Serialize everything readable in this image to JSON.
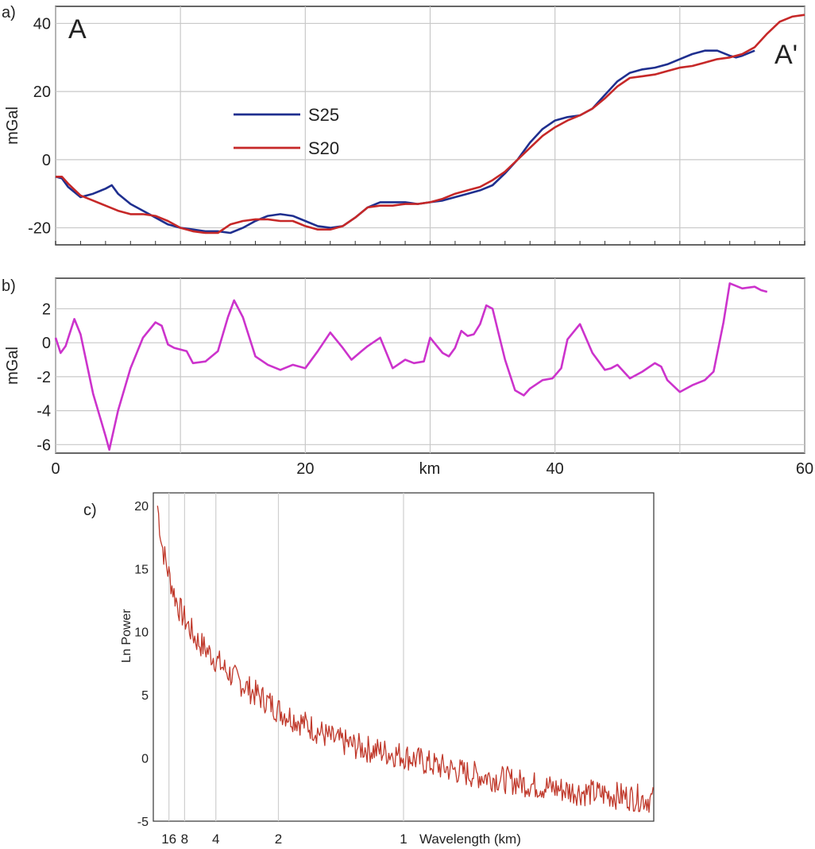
{
  "chart_data": [
    {
      "panel_label": "a)",
      "type": "line",
      "ylabel": "mGal",
      "xlim": [
        0,
        60
      ],
      "ylim": [
        -25,
        45
      ],
      "y_ticks": [
        -20,
        0,
        20,
        40
      ],
      "x_gridlines": [
        0,
        10,
        20,
        30,
        40,
        50,
        60
      ],
      "grid": true,
      "legend_position": "center-left",
      "annotations": [
        "A",
        "A'"
      ],
      "series": [
        {
          "name": "S25",
          "color": "#1f2f8f",
          "x": [
            0,
            0.5,
            1,
            2,
            3,
            4,
            4.5,
            5,
            6,
            7,
            8,
            9,
            10,
            11,
            12,
            13,
            14,
            15,
            16,
            17,
            18,
            19,
            20,
            21,
            22,
            23,
            24,
            25,
            26,
            27,
            28,
            29,
            30,
            31,
            32,
            33,
            34,
            35,
            36,
            37,
            38,
            39,
            40,
            41,
            42,
            43,
            44,
            45,
            46,
            47,
            48,
            49,
            50,
            51,
            52,
            53,
            54,
            54.5,
            55,
            56
          ],
          "y": [
            -5,
            -5.5,
            -8,
            -11,
            -10,
            -8.5,
            -7.5,
            -10,
            -13,
            -15,
            -17,
            -19,
            -20,
            -20.5,
            -21,
            -21,
            -21.5,
            -20,
            -18,
            -16.5,
            -16,
            -16.5,
            -18,
            -19.5,
            -20,
            -19.5,
            -17,
            -14,
            -12.5,
            -12.5,
            -12.5,
            -13,
            -12.5,
            -12,
            -11,
            -10,
            -9,
            -7.5,
            -4,
            0,
            5,
            9,
            11.5,
            12.5,
            13,
            15,
            19,
            23,
            25.5,
            26.5,
            27,
            28,
            29.5,
            31,
            32,
            32,
            30.5,
            30,
            30.5,
            32
          ]
        },
        {
          "name": "S20",
          "color": "#c62828",
          "x": [
            0,
            0.5,
            1,
            2,
            3,
            4,
            5,
            6,
            7,
            8,
            9,
            10,
            11,
            12,
            13,
            14,
            15,
            16,
            17,
            18,
            19,
            20,
            21,
            22,
            23,
            24,
            25,
            26,
            27,
            28,
            29,
            30,
            31,
            32,
            33,
            34,
            35,
            36,
            37,
            38,
            39,
            40,
            41,
            42,
            43,
            44,
            45,
            46,
            47,
            48,
            49,
            50,
            51,
            52,
            53,
            54,
            55,
            56,
            57,
            58,
            59,
            60
          ],
          "y": [
            -5,
            -5,
            -7,
            -10.5,
            -12,
            -13.5,
            -15,
            -16,
            -16,
            -16.5,
            -18,
            -20,
            -21,
            -21.5,
            -21.5,
            -19,
            -18,
            -17.5,
            -17.5,
            -18,
            -18,
            -19.5,
            -20.5,
            -20.5,
            -19.5,
            -17,
            -14,
            -13.5,
            -13.5,
            -13,
            -13,
            -12.5,
            -11.5,
            -10,
            -9,
            -8,
            -6,
            -3.5,
            0,
            3.5,
            7,
            9.5,
            11.5,
            13,
            15,
            18,
            21.5,
            24,
            24.5,
            25,
            26,
            27,
            27.5,
            28.5,
            29.5,
            30,
            31,
            33,
            37,
            40.5,
            42,
            42.5
          ]
        }
      ]
    },
    {
      "panel_label": "b)",
      "type": "line",
      "ylabel": "mGal",
      "xlabel": "km",
      "xlim": [
        0,
        60
      ],
      "ylim": [
        -6.5,
        3.8
      ],
      "y_ticks": [
        -6,
        -4,
        -2,
        0,
        2
      ],
      "x_ticks": [
        0,
        20,
        40,
        60
      ],
      "x_gridlines": [
        0,
        10,
        20,
        30,
        40,
        50,
        60
      ],
      "grid": true,
      "series": [
        {
          "color": "#cc33cc",
          "x": [
            0,
            0.4,
            0.8,
            1.5,
            2,
            3,
            4,
            4.3,
            5,
            6,
            7,
            8,
            8.5,
            9,
            9.5,
            10.5,
            11,
            12,
            13,
            13.8,
            14.3,
            15,
            16,
            17,
            18,
            19,
            20,
            21,
            22,
            23,
            23.7,
            24.5,
            25,
            26,
            27,
            28,
            28.7,
            29.5,
            30,
            31,
            31.5,
            32,
            32.5,
            33,
            33.5,
            34,
            34.5,
            35,
            35.5,
            36,
            36.8,
            37.5,
            38,
            39,
            39.8,
            40.5,
            41,
            42,
            43,
            44,
            44.5,
            45,
            46,
            47,
            48,
            48.5,
            49,
            50,
            51,
            52,
            52.7,
            53.5,
            54,
            55,
            56,
            56.5,
            57
          ],
          "y": [
            0.3,
            -0.6,
            -0.2,
            1.4,
            0.5,
            -3,
            -5.5,
            -6.3,
            -4,
            -1.5,
            0.3,
            1.2,
            1.0,
            -0.1,
            -0.3,
            -0.5,
            -1.2,
            -1.1,
            -0.5,
            1.5,
            2.5,
            1.5,
            -0.8,
            -1.3,
            -1.6,
            -1.3,
            -1.5,
            -0.5,
            0.6,
            -0.3,
            -1.0,
            -0.5,
            -0.2,
            0.3,
            -1.5,
            -1.0,
            -1.2,
            -1.1,
            0.3,
            -0.6,
            -0.8,
            -0.3,
            0.7,
            0.4,
            0.5,
            1.1,
            2.2,
            2.0,
            0.5,
            -1.0,
            -2.8,
            -3.1,
            -2.7,
            -2.2,
            -2.1,
            -1.5,
            0.2,
            1.1,
            -0.6,
            -1.6,
            -1.5,
            -1.3,
            -2.1,
            -1.7,
            -1.2,
            -1.4,
            -2.2,
            -2.9,
            -2.5,
            -2.2,
            -1.7,
            1.2,
            3.5,
            3.2,
            3.3,
            3.1,
            3.0
          ]
        }
      ]
    },
    {
      "panel_label": "c)",
      "type": "line",
      "ylabel": "Ln Power",
      "xlabel": "Wavelength (km)",
      "x_scale": "reciprocal",
      "ylim": [
        -5,
        21
      ],
      "y_ticks": [
        -5,
        0,
        5,
        10,
        15,
        20
      ],
      "x_ticks": [
        16,
        8,
        4,
        2,
        1
      ],
      "x_tick_labels": [
        "16",
        "8",
        "4",
        "2",
        "1"
      ],
      "grid": "vertical",
      "series": [
        {
          "color": "#c0392b",
          "x": [
            60,
            30,
            20,
            16,
            12,
            10,
            8,
            6,
            5,
            4,
            3.5,
            3,
            2.5,
            2.2,
            2,
            1.8,
            1.6,
            1.4,
            1.2,
            1,
            0.9,
            0.8,
            0.7,
            0.65,
            0.6,
            0.55,
            0.5
          ],
          "y": [
            20,
            17,
            15.5,
            14.5,
            13,
            12,
            11,
            9.5,
            8.8,
            7.8,
            7,
            6.2,
            5.2,
            4.5,
            3.8,
            3.2,
            2.5,
            1.5,
            0.8,
            0.2,
            -0.5,
            -1.2,
            -1.8,
            -2.2,
            -2.6,
            -2.9,
            -3.3
          ]
        }
      ]
    }
  ]
}
